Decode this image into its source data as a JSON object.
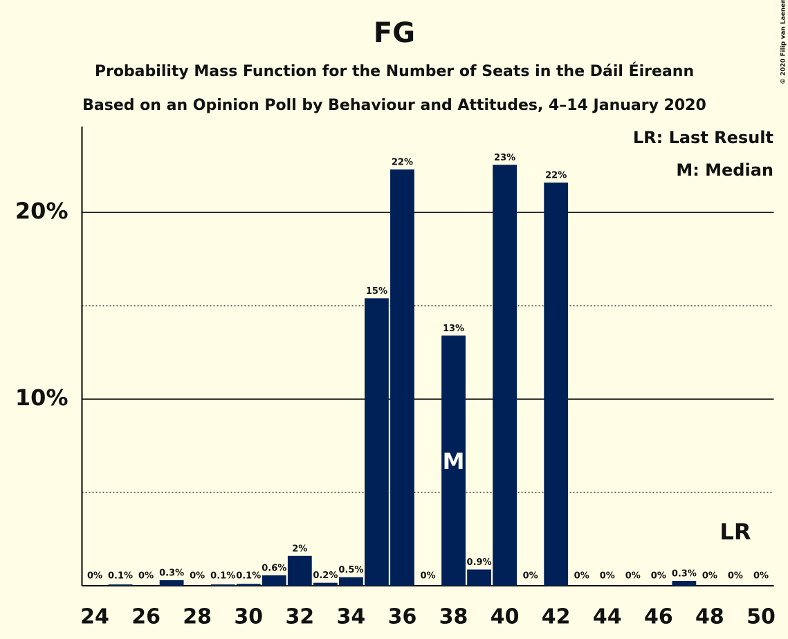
{
  "chart_data": {
    "type": "bar",
    "title": "FG",
    "subtitle": "Probability Mass Function for the Number of Seats in the Dáil Éireann",
    "subtitle2": "Based on an Opinion Poll by Behaviour and Attitudes, 4–14 January 2020",
    "notes": [
      "LR: Last Result",
      "M: Median"
    ],
    "copyright": "© 2020 Filip van Laenen",
    "categories": [
      24,
      null,
      26,
      null,
      28,
      null,
      30,
      null,
      32,
      null,
      34,
      null,
      36,
      null,
      38,
      null,
      40,
      null,
      42,
      null,
      44,
      null,
      46,
      null,
      48,
      null,
      50
    ],
    "values": [
      0,
      0.07,
      0,
      0.3,
      0,
      0.07,
      0.1,
      0.56,
      1.6,
      0.16,
      0.46,
      15.4,
      22.3,
      0,
      13.4,
      0.87,
      22.55,
      0,
      21.6,
      0,
      0,
      0,
      0,
      0.26,
      0,
      0,
      0
    ],
    "value_labels": [
      "0%",
      "0.1%",
      "0%",
      "0.3%",
      "0%",
      "0.1%",
      "0.1%",
      "0.6%",
      "2%",
      "0.2%",
      "0.5%",
      "15%",
      "22%",
      "0%",
      "13%",
      "0.9%",
      "23%",
      "0%",
      "22%",
      "0%",
      "0%",
      "0%",
      "0%",
      "0.3%",
      "0%",
      "0%",
      "0%"
    ],
    "color": "#002157",
    "median_marker": {
      "text": "M",
      "index": 14
    },
    "last_result_marker": {
      "text": "LR",
      "index": 25
    },
    "ylim": [
      0,
      24.6
    ],
    "yticks": [
      {
        "value": 10,
        "label": "10%"
      },
      {
        "value": 20,
        "label": "20%"
      }
    ],
    "minor_yticks": [
      5,
      15
    ],
    "grid": true
  }
}
